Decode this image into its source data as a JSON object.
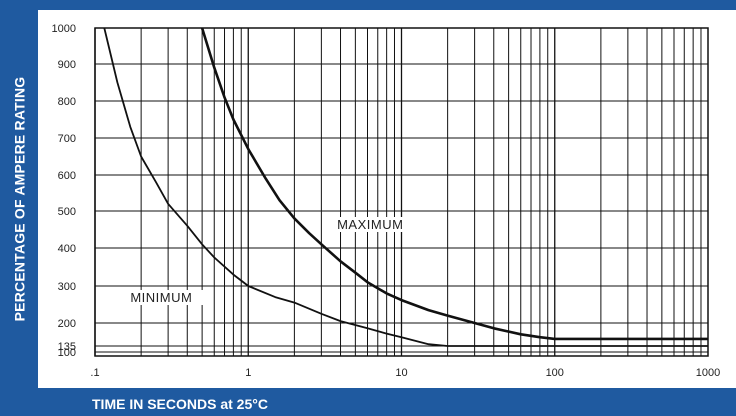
{
  "chart_data": {
    "type": "line",
    "title": "",
    "xlabel": "TIME IN SECONDS at 25°C",
    "ylabel": "PERCENTAGE OF AMPERE RATING",
    "x_scale": "log",
    "xlim": [
      0.1,
      1000
    ],
    "ylim": [
      100,
      1000
    ],
    "grid": true,
    "x_ticks": [
      ".1",
      "1",
      "10",
      "100",
      "1000"
    ],
    "y_ticks": [
      "100",
      "135",
      "200",
      "300",
      "400",
      "500",
      "600",
      "700",
      "800",
      "900",
      "1000"
    ],
    "y_tick_values": [
      100,
      135,
      200,
      300,
      400,
      500,
      600,
      700,
      800,
      900,
      1000
    ],
    "series": [
      {
        "name": "MAXIMUM",
        "x": [
          0.5,
          0.6,
          0.7,
          0.8,
          1,
          1.3,
          1.6,
          2,
          2.5,
          3,
          4,
          5,
          6,
          8,
          10,
          15,
          20,
          30,
          40,
          60,
          80,
          100,
          200,
          1000
        ],
        "y": [
          1000,
          890,
          810,
          750,
          670,
          590,
          530,
          480,
          440,
          410,
          365,
          335,
          310,
          280,
          262,
          235,
          220,
          200,
          185,
          168,
          160,
          155,
          155,
          155
        ]
      },
      {
        "name": "MINIMUM",
        "x": [
          0.115,
          0.14,
          0.17,
          0.2,
          0.25,
          0.3,
          0.4,
          0.5,
          0.6,
          0.8,
          1,
          1.5,
          2,
          3,
          4,
          6,
          8,
          10,
          15,
          20,
          100,
          1000
        ],
        "y": [
          1000,
          850,
          730,
          650,
          580,
          520,
          460,
          410,
          375,
          330,
          300,
          270,
          255,
          225,
          205,
          185,
          170,
          160,
          140,
          135,
          135,
          135
        ]
      }
    ],
    "annotations": [
      "MAXIMUM",
      "MINIMUM"
    ]
  }
}
